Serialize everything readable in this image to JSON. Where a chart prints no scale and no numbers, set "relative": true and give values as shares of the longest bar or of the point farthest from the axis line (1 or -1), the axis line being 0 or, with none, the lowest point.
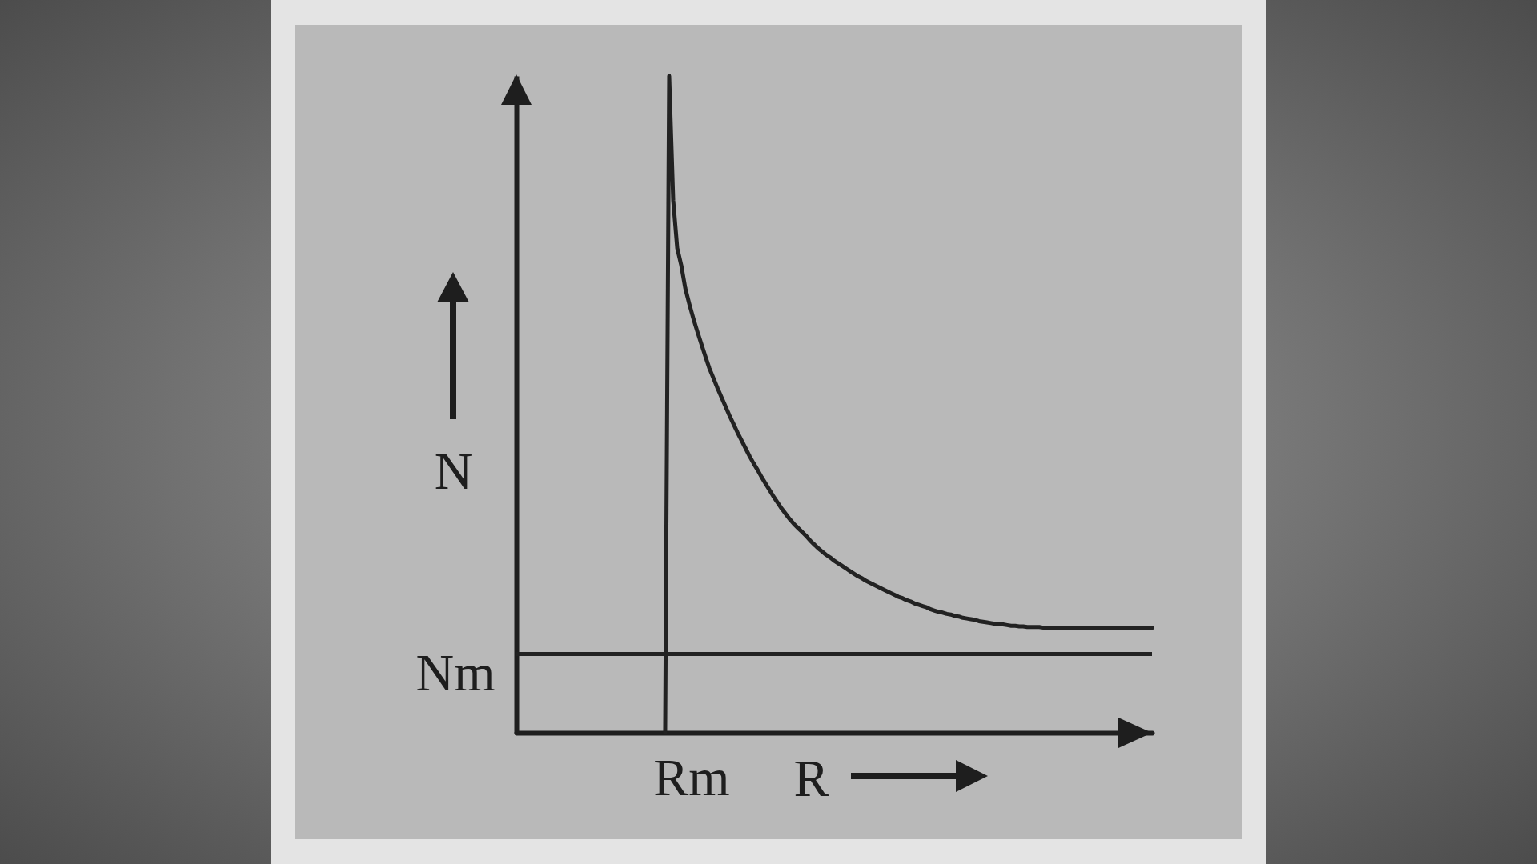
{
  "chart_data": {
    "type": "line",
    "xlabel": "R",
    "ylabel": "N",
    "relative": true,
    "categories": [
      null,
      null,
      null,
      null,
      null,
      null,
      null,
      null,
      null,
      null,
      null,
      null,
      null,
      null,
      null,
      null,
      null,
      null,
      null,
      null,
      null,
      null,
      null,
      null,
      null,
      null,
      null,
      null,
      null,
      null,
      null,
      null,
      null,
      null,
      null,
      null,
      null,
      null,
      null,
      null,
      null,
      null,
      null,
      null,
      null,
      null,
      null,
      null,
      null,
      null,
      null,
      null,
      null,
      null,
      null,
      null,
      null,
      null,
      null,
      null,
      null,
      null,
      null,
      null,
      null,
      null,
      null,
      null,
      null,
      null,
      null,
      null,
      null,
      null,
      null,
      null,
      null,
      null,
      null,
      null,
      null,
      null,
      null,
      null,
      null,
      null,
      null,
      null,
      null,
      null,
      null,
      null,
      null,
      null,
      null,
      null,
      null,
      null,
      null,
      null,
      null,
      null,
      null,
      null,
      null,
      null,
      null,
      null,
      null,
      null,
      null,
      null,
      null,
      null,
      null,
      null,
      null,
      null,
      null,
      null,
      null,
      null,
      null,
      null,
      null,
      null,
      null,
      null,
      null,
      null,
      null,
      null,
      null,
      null,
      null,
      null,
      null,
      null,
      null,
      null,
      null,
      null,
      null,
      null,
      null,
      null,
      null,
      null,
      null,
      null,
      null,
      null,
      null,
      null,
      null,
      null,
      null,
      null,
      null
    ],
    "values": [
      null,
      null,
      null,
      null,
      null,
      null,
      null,
      null,
      null,
      null,
      null,
      null,
      null,
      null,
      null,
      null,
      null,
      null,
      null,
      null,
      null,
      null,
      null,
      null,
      null,
      null,
      null,
      null,
      null,
      null,
      null,
      null,
      null,
      null,
      null,
      null,
      null,
      0,
      1.0,
      0.811,
      0.738,
      0.712,
      0.677,
      0.653,
      0.631,
      0.611,
      0.592,
      0.573,
      0.555,
      0.54,
      0.525,
      0.511,
      0.497,
      0.483,
      0.47,
      0.457,
      0.445,
      0.433,
      0.421,
      0.41,
      0.4,
      0.389,
      0.379,
      0.369,
      0.359,
      0.35,
      0.341,
      0.333,
      0.325,
      0.318,
      0.312,
      0.306,
      0.3,
      0.293,
      0.287,
      0.281,
      0.276,
      0.271,
      0.267,
      0.262,
      0.258,
      0.254,
      0.25,
      0.246,
      0.242,
      0.238,
      0.235,
      0.231,
      0.228,
      0.225,
      0.222,
      0.219,
      0.216,
      0.213,
      0.21,
      0.207,
      0.205,
      0.202,
      0.2,
      0.197,
      0.195,
      0.193,
      0.191,
      0.188,
      0.186,
      0.184,
      0.183,
      0.181,
      0.18,
      0.178,
      0.177,
      0.175,
      0.174,
      0.173,
      0.172,
      0.17,
      0.169,
      0.168,
      0.167,
      0.166,
      0.166,
      0.165,
      0.164,
      0.163,
      0.163,
      0.162,
      0.162,
      0.161,
      0.161,
      0.161,
      0.161,
      0.16,
      0.16,
      0.16,
      0.16,
      0.16,
      0.16,
      0.16,
      0.16,
      0.16,
      0.16,
      0.16,
      0.16,
      0.16,
      0.16,
      0.16,
      0.16,
      0.16,
      0.16,
      0.16,
      0.16,
      0.16,
      0.16,
      0.16,
      0.16,
      0.16,
      0.16,
      0.16,
      0.16
    ],
    "color": "#222222",
    "ref_lines": [
      {
        "axis": "y",
        "value": 0.12,
        "label": "Nm",
        "color": "#222222"
      }
    ],
    "annotations": [
      "Rm"
    ]
  }
}
